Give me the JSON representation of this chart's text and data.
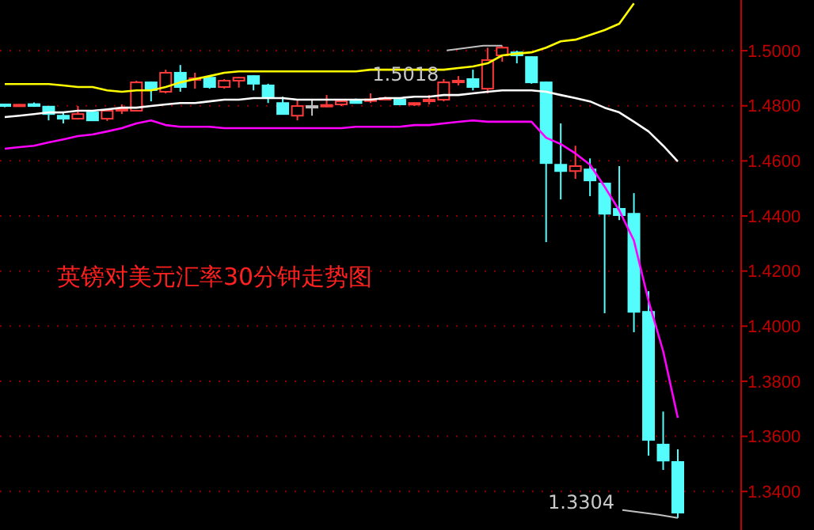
{
  "chart_data": {
    "type": "candlestick",
    "title": "英镑对美元汇率30分钟走势图",
    "categories": [
      null,
      null,
      null,
      null,
      null,
      null,
      null,
      null,
      null,
      null,
      null,
      null,
      null,
      null,
      null,
      null,
      null,
      null,
      null,
      null,
      null,
      null,
      null,
      null,
      null,
      null,
      null,
      null,
      null,
      null,
      null,
      null,
      null,
      null,
      null,
      null,
      null,
      null,
      null,
      null,
      null,
      null,
      null,
      null,
      null,
      null,
      null
    ],
    "ohlc": [
      [
        1.4805,
        1.4808,
        1.4795,
        1.4799
      ],
      [
        1.4802,
        1.4806,
        1.48,
        1.4804
      ],
      [
        1.4806,
        1.4812,
        1.4796,
        1.4799
      ],
      [
        1.4797,
        1.4799,
        1.4747,
        1.477
      ],
      [
        1.4764,
        1.4776,
        1.4736,
        1.4753
      ],
      [
        1.4753,
        1.4799,
        1.475,
        1.477
      ],
      [
        1.4776,
        1.478,
        1.4745,
        1.4747
      ],
      [
        1.4753,
        1.4785,
        1.4745,
        1.4782
      ],
      [
        1.4786,
        1.4805,
        1.477,
        1.4788
      ],
      [
        1.4782,
        1.4891,
        1.478,
        1.4885
      ],
      [
        1.4885,
        1.4888,
        1.4816,
        1.4857
      ],
      [
        1.4851,
        1.4931,
        1.4845,
        1.492
      ],
      [
        1.492,
        1.4948,
        1.4851,
        1.4868
      ],
      [
        1.4894,
        1.492,
        1.4862,
        1.49
      ],
      [
        1.4902,
        1.4908,
        1.4862,
        1.4868
      ],
      [
        1.4868,
        1.4897,
        1.4862,
        1.4891
      ],
      [
        1.4891,
        1.4905,
        1.4866,
        1.4902
      ],
      [
        1.4908,
        1.491,
        1.4856,
        1.488
      ],
      [
        1.4874,
        1.488,
        1.481,
        1.4828
      ],
      [
        1.481,
        1.4833,
        1.477,
        1.477
      ],
      [
        1.4764,
        1.4822,
        1.4747,
        1.4799
      ],
      [
        1.4799,
        1.4822,
        1.4764,
        1.4799
      ],
      [
        1.48,
        1.4839,
        1.4795,
        1.4803
      ],
      [
        1.4805,
        1.4818,
        1.4799,
        1.4816
      ],
      [
        1.4822,
        1.4826,
        1.4808,
        1.481
      ],
      [
        1.482,
        1.4845,
        1.481,
        1.4823
      ],
      [
        1.4825,
        1.4833,
        1.482,
        1.4828
      ],
      [
        1.4822,
        1.4826,
        1.4803,
        1.4805
      ],
      [
        1.4808,
        1.4812,
        1.4799,
        1.481
      ],
      [
        1.482,
        1.4839,
        1.4805,
        1.4822
      ],
      [
        1.4822,
        1.4897,
        1.4816,
        1.4885
      ],
      [
        1.4888,
        1.4908,
        1.4874,
        1.4891
      ],
      [
        1.4897,
        1.4931,
        1.4856,
        1.4868
      ],
      [
        1.4862,
        1.5011,
        1.4845,
        1.4966
      ],
      [
        1.4983,
        1.5018,
        1.496,
        1.5011
      ],
      [
        1.4994,
        1.5,
        1.4954,
        1.4983
      ],
      [
        1.4977,
        1.498,
        1.488,
        1.4885
      ],
      [
        1.4885,
        1.4888,
        1.4305,
        1.4592
      ],
      [
        1.4586,
        1.4736,
        1.446,
        1.4563
      ],
      [
        1.4563,
        1.4655,
        1.4535,
        1.4581
      ],
      [
        1.4569,
        1.4609,
        1.4472,
        1.4529
      ],
      [
        1.4518,
        1.4518,
        1.4047,
        1.4408
      ],
      [
        1.4426,
        1.4581,
        1.4385,
        1.4403
      ],
      [
        1.4408,
        1.4483,
        1.3978,
        1.4052
      ],
      [
        1.4052,
        1.4127,
        1.353,
        1.3587
      ],
      [
        1.357,
        1.369,
        1.3478,
        1.3512
      ],
      [
        1.3507,
        1.3553,
        1.3304,
        1.3323
      ]
    ],
    "colors": [
      "#54fcfc",
      "#ff3b3b",
      "#54fcfc",
      "#54fcfc",
      "#54fcfc",
      "#ff3b3b",
      "#54fcfc",
      "#ff3b3b",
      "#ff3b3b",
      "#ff3b3b",
      "#54fcfc",
      "#ff3b3b",
      "#54fcfc",
      "#ff3b3b",
      "#54fcfc",
      "#ff3b3b",
      "#ff3b3b",
      "#54fcfc",
      "#54fcfc",
      "#54fcfc",
      "#ff3b3b",
      "#c0c0c0",
      "#ff3b3b",
      "#ff3b3b",
      "#54fcfc",
      "#ff3b3b",
      "#ff3b3b",
      "#54fcfc",
      "#ff3b3b",
      "#ff3b3b",
      "#ff3b3b",
      "#ff3b3b",
      "#54fcfc",
      "#ff3b3b",
      "#ff3b3b",
      "#54fcfc",
      "#54fcfc",
      "#54fcfc",
      "#54fcfc",
      "#ff3b3b",
      "#54fcfc",
      "#54fcfc",
      "#54fcfc",
      "#54fcfc",
      "#54fcfc",
      "#54fcfc",
      "#54fcfc"
    ],
    "series": [
      {
        "type": "line",
        "color": "#ffff00",
        "values": [
          1.4879,
          1.4879,
          1.4879,
          1.4879,
          1.4874,
          1.4868,
          1.4868,
          1.4856,
          1.4851,
          1.4856,
          1.4856,
          1.4868,
          1.4885,
          1.4897,
          1.4908,
          1.492,
          1.4925,
          1.4925,
          1.4925,
          1.4925,
          1.4925,
          1.4925,
          1.4925,
          1.4925,
          1.4925,
          1.4931,
          1.4931,
          1.4931,
          1.4931,
          1.4931,
          1.4931,
          1.4937,
          1.4943,
          1.4954,
          1.4983,
          1.4989,
          1.4994,
          1.5011,
          1.5034,
          1.504,
          1.5057,
          1.5075,
          1.5098,
          1.5172,
          null,
          null,
          null
        ]
      },
      {
        "type": "line",
        "color": "#ffffff",
        "values": [
          1.4759,
          1.4764,
          1.477,
          1.4776,
          1.4776,
          1.4782,
          1.4782,
          1.4787,
          1.4793,
          1.4793,
          1.4799,
          1.4805,
          1.481,
          1.481,
          1.4816,
          1.4822,
          1.4822,
          1.4828,
          1.4828,
          1.4828,
          1.4822,
          1.4822,
          1.4822,
          1.4822,
          1.4822,
          1.4822,
          1.4828,
          1.4828,
          1.4833,
          1.4833,
          1.4839,
          1.4839,
          1.4845,
          1.4851,
          1.4856,
          1.4856,
          1.4856,
          1.4851,
          1.4839,
          1.4828,
          1.4816,
          1.4793,
          1.4776,
          1.4742,
          1.4707,
          1.4655,
          1.4598
        ]
      },
      {
        "type": "line",
        "color": "#ff00ff",
        "values": [
          1.4644,
          1.465,
          1.4655,
          1.4667,
          1.4678,
          1.469,
          1.4696,
          1.4707,
          1.4719,
          1.4736,
          1.4747,
          1.473,
          1.4724,
          1.4724,
          1.4724,
          1.4719,
          1.4719,
          1.4719,
          1.4719,
          1.4719,
          1.4719,
          1.4719,
          1.4719,
          1.4719,
          1.4724,
          1.4724,
          1.4724,
          1.4724,
          1.473,
          1.473,
          1.4736,
          1.4742,
          1.4747,
          1.4742,
          1.4742,
          1.4742,
          1.4742,
          1.4684,
          1.4661,
          1.4627,
          1.4586,
          1.4506,
          1.442,
          1.4311,
          1.4092,
          1.3909,
          1.3667
        ]
      }
    ],
    "annotations": [
      "1.5018",
      "1.3304"
    ],
    "ylim": [
      1.326,
      1.5184
    ],
    "yticks": [
      {
        "value": 1.34,
        "label": "1.3400"
      },
      {
        "value": 1.36,
        "label": "1.3600"
      },
      {
        "value": 1.38,
        "label": "1.3800"
      },
      {
        "value": 1.4,
        "label": "1.4000"
      },
      {
        "value": 1.42,
        "label": "1.4200"
      },
      {
        "value": 1.44,
        "label": "1.4400"
      },
      {
        "value": 1.46,
        "label": "1.4600"
      },
      {
        "value": 1.48,
        "label": "1.4800"
      },
      {
        "value": 1.5,
        "label": "1.5000"
      }
    ],
    "grid": "y"
  }
}
